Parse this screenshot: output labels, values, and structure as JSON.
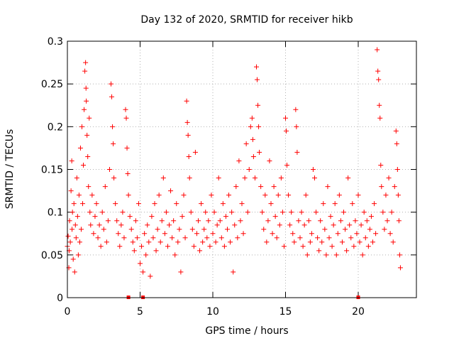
{
  "chart_data": {
    "type": "scatter",
    "title": "Day 132 of 2020, SRMTID for receiver hikb",
    "xlabel": "GPS time / hours",
    "ylabel": "SRMTID / TECUs",
    "xlim": [
      0,
      24
    ],
    "ylim": [
      0,
      0.3
    ],
    "xticks": [
      0,
      5,
      10,
      15,
      20
    ],
    "xtick_labels": [
      "0",
      "5",
      "10",
      "15",
      "20"
    ],
    "yticks": [
      0,
      0.05,
      0.1,
      0.15,
      0.2,
      0.25,
      0.3
    ],
    "ytick_labels": [
      "0",
      "0.05",
      "0.1",
      "0.15",
      "0.2",
      "0.25",
      "0.3"
    ],
    "grid": true,
    "marker": "+",
    "color": "#ff0000",
    "series": [
      {
        "name": "SRMTID",
        "points": [
          [
            0.0,
            0.06
          ],
          [
            0.05,
            0.072
          ],
          [
            0.1,
            0.035
          ],
          [
            0.12,
            0.055
          ],
          [
            0.15,
            0.09
          ],
          [
            0.2,
            0.065
          ],
          [
            0.25,
            0.125
          ],
          [
            0.3,
            0.16
          ],
          [
            0.32,
            0.08
          ],
          [
            0.35,
            0.1
          ],
          [
            0.4,
            0.045
          ],
          [
            0.45,
            0.11
          ],
          [
            0.5,
            0.03
          ],
          [
            0.55,
            0.085
          ],
          [
            0.6,
            0.07
          ],
          [
            0.65,
            0.14
          ],
          [
            0.7,
            0.095
          ],
          [
            0.75,
            0.05
          ],
          [
            0.8,
            0.12
          ],
          [
            0.85,
            0.065
          ],
          [
            0.9,
            0.175
          ],
          [
            0.95,
            0.08
          ],
          [
            1.0,
            0.2
          ],
          [
            1.05,
            0.11
          ],
          [
            1.1,
            0.155
          ],
          [
            1.15,
            0.22
          ],
          [
            1.2,
            0.265
          ],
          [
            1.25,
            0.275
          ],
          [
            1.28,
            0.245
          ],
          [
            1.3,
            0.23
          ],
          [
            1.35,
            0.19
          ],
          [
            1.4,
            0.165
          ],
          [
            1.45,
            0.13
          ],
          [
            1.5,
            0.21
          ],
          [
            1.55,
            0.1
          ],
          [
            1.6,
            0.085
          ],
          [
            1.7,
            0.12
          ],
          [
            1.8,
            0.075
          ],
          [
            1.9,
            0.095
          ],
          [
            2.0,
            0.11
          ],
          [
            2.1,
            0.07
          ],
          [
            2.2,
            0.085
          ],
          [
            2.3,
            0.06
          ],
          [
            2.4,
            0.1
          ],
          [
            2.5,
            0.08
          ],
          [
            2.6,
            0.13
          ],
          [
            2.7,
            0.065
          ],
          [
            2.8,
            0.09
          ],
          [
            2.9,
            0.15
          ],
          [
            3.0,
            0.25
          ],
          [
            3.05,
            0.235
          ],
          [
            3.1,
            0.2
          ],
          [
            3.15,
            0.18
          ],
          [
            3.2,
            0.14
          ],
          [
            3.3,
            0.11
          ],
          [
            3.4,
            0.09
          ],
          [
            3.5,
            0.075
          ],
          [
            3.6,
            0.06
          ],
          [
            3.7,
            0.085
          ],
          [
            3.8,
            0.1
          ],
          [
            3.9,
            0.07
          ],
          [
            4.0,
            0.22
          ],
          [
            4.05,
            0.21
          ],
          [
            4.1,
            0.175
          ],
          [
            4.15,
            0.145
          ],
          [
            4.2,
            0.12
          ],
          [
            4.3,
            0.095
          ],
          [
            4.4,
            0.08
          ],
          [
            4.5,
            0.065
          ],
          [
            4.6,
            0.055
          ],
          [
            4.7,
            0.09
          ],
          [
            4.8,
            0.07
          ],
          [
            4.9,
            0.11
          ],
          [
            5.0,
            0.04
          ],
          [
            5.1,
            0.06
          ],
          [
            5.2,
            0.03
          ],
          [
            5.3,
            0.075
          ],
          [
            5.4,
            0.05
          ],
          [
            5.5,
            0.085
          ],
          [
            5.6,
            0.065
          ],
          [
            5.7,
            0.025
          ],
          [
            5.8,
            0.095
          ],
          [
            5.9,
            0.07
          ],
          [
            6.0,
            0.11
          ],
          [
            6.1,
            0.055
          ],
          [
            6.2,
            0.08
          ],
          [
            6.3,
            0.12
          ],
          [
            6.4,
            0.065
          ],
          [
            6.5,
            0.09
          ],
          [
            6.6,
            0.14
          ],
          [
            6.7,
            0.075
          ],
          [
            6.8,
            0.1
          ],
          [
            6.9,
            0.06
          ],
          [
            7.0,
            0.085
          ],
          [
            7.1,
            0.125
          ],
          [
            7.2,
            0.07
          ],
          [
            7.3,
            0.09
          ],
          [
            7.4,
            0.05
          ],
          [
            7.5,
            0.11
          ],
          [
            7.6,
            0.065
          ],
          [
            7.7,
            0.08
          ],
          [
            7.8,
            0.03
          ],
          [
            7.9,
            0.095
          ],
          [
            8.0,
            0.12
          ],
          [
            8.1,
            0.07
          ],
          [
            8.2,
            0.23
          ],
          [
            8.25,
            0.205
          ],
          [
            8.3,
            0.19
          ],
          [
            8.35,
            0.165
          ],
          [
            8.4,
            0.14
          ],
          [
            8.5,
            0.1
          ],
          [
            8.6,
            0.08
          ],
          [
            8.7,
            0.06
          ],
          [
            8.8,
            0.17
          ],
          [
            8.9,
            0.075
          ],
          [
            9.0,
            0.09
          ],
          [
            9.1,
            0.055
          ],
          [
            9.2,
            0.11
          ],
          [
            9.3,
            0.065
          ],
          [
            9.4,
            0.08
          ],
          [
            9.5,
            0.1
          ],
          [
            9.6,
            0.07
          ],
          [
            9.7,
            0.09
          ],
          [
            9.8,
            0.06
          ],
          [
            9.9,
            0.12
          ],
          [
            10.0,
            0.075
          ],
          [
            10.1,
            0.1
          ],
          [
            10.2,
            0.065
          ],
          [
            10.3,
            0.085
          ],
          [
            10.4,
            0.14
          ],
          [
            10.5,
            0.09
          ],
          [
            10.6,
            0.07
          ],
          [
            10.7,
            0.11
          ],
          [
            10.8,
            0.06
          ],
          [
            10.9,
            0.095
          ],
          [
            11.0,
            0.08
          ],
          [
            11.1,
            0.12
          ],
          [
            11.2,
            0.065
          ],
          [
            11.3,
            0.1
          ],
          [
            11.4,
            0.03
          ],
          [
            11.5,
            0.085
          ],
          [
            11.6,
            0.13
          ],
          [
            11.7,
            0.07
          ],
          [
            11.8,
            0.16
          ],
          [
            11.9,
            0.09
          ],
          [
            12.0,
            0.11
          ],
          [
            12.1,
            0.075
          ],
          [
            12.2,
            0.14
          ],
          [
            12.3,
            0.18
          ],
          [
            12.4,
            0.1
          ],
          [
            12.5,
            0.15
          ],
          [
            12.6,
            0.2
          ],
          [
            12.7,
            0.21
          ],
          [
            12.75,
            0.185
          ],
          [
            12.8,
            0.165
          ],
          [
            12.9,
            0.14
          ],
          [
            13.0,
            0.27
          ],
          [
            13.05,
            0.255
          ],
          [
            13.1,
            0.225
          ],
          [
            13.15,
            0.2
          ],
          [
            13.2,
            0.17
          ],
          [
            13.3,
            0.13
          ],
          [
            13.4,
            0.1
          ],
          [
            13.5,
            0.08
          ],
          [
            13.6,
            0.12
          ],
          [
            13.7,
            0.065
          ],
          [
            13.8,
            0.09
          ],
          [
            13.9,
            0.16
          ],
          [
            14.0,
            0.11
          ],
          [
            14.1,
            0.075
          ],
          [
            14.2,
            0.13
          ],
          [
            14.3,
            0.095
          ],
          [
            14.4,
            0.07
          ],
          [
            14.5,
            0.12
          ],
          [
            14.6,
            0.085
          ],
          [
            14.7,
            0.14
          ],
          [
            14.8,
            0.1
          ],
          [
            14.9,
            0.06
          ],
          [
            15.0,
            0.21
          ],
          [
            15.05,
            0.195
          ],
          [
            15.1,
            0.155
          ],
          [
            15.2,
            0.12
          ],
          [
            15.3,
            0.085
          ],
          [
            15.4,
            0.1
          ],
          [
            15.5,
            0.075
          ],
          [
            15.6,
            0.065
          ],
          [
            15.7,
            0.22
          ],
          [
            15.75,
            0.2
          ],
          [
            15.8,
            0.17
          ],
          [
            15.9,
            0.09
          ],
          [
            16.0,
            0.07
          ],
          [
            16.1,
            0.1
          ],
          [
            16.2,
            0.06
          ],
          [
            16.3,
            0.085
          ],
          [
            16.4,
            0.12
          ],
          [
            16.5,
            0.05
          ],
          [
            16.6,
            0.09
          ],
          [
            16.7,
            0.065
          ],
          [
            16.8,
            0.075
          ],
          [
            16.9,
            0.15
          ],
          [
            17.0,
            0.14
          ],
          [
            17.1,
            0.1
          ],
          [
            17.2,
            0.07
          ],
          [
            17.3,
            0.055
          ],
          [
            17.4,
            0.09
          ],
          [
            17.5,
            0.065
          ],
          [
            17.6,
            0.11
          ],
          [
            17.7,
            0.08
          ],
          [
            17.8,
            0.05
          ],
          [
            17.9,
            0.13
          ],
          [
            18.0,
            0.07
          ],
          [
            18.1,
            0.095
          ],
          [
            18.2,
            0.06
          ],
          [
            18.3,
            0.085
          ],
          [
            18.4,
            0.11
          ],
          [
            18.5,
            0.05
          ],
          [
            18.6,
            0.075
          ],
          [
            18.7,
            0.12
          ],
          [
            18.8,
            0.09
          ],
          [
            18.9,
            0.065
          ],
          [
            19.0,
            0.1
          ],
          [
            19.1,
            0.08
          ],
          [
            19.2,
            0.055
          ],
          [
            19.3,
            0.14
          ],
          [
            19.4,
            0.085
          ],
          [
            19.5,
            0.07
          ],
          [
            19.6,
            0.11
          ],
          [
            19.7,
            0.06
          ],
          [
            19.8,
            0.09
          ],
          [
            19.9,
            0.075
          ],
          [
            20.0,
            0.12
          ],
          [
            20.1,
            0.065
          ],
          [
            20.2,
            0.085
          ],
          [
            20.3,
            0.05
          ],
          [
            20.4,
            0.1
          ],
          [
            20.5,
            0.07
          ],
          [
            20.6,
            0.09
          ],
          [
            20.7,
            0.06
          ],
          [
            20.8,
            0.08
          ],
          [
            20.9,
            0.095
          ],
          [
            21.0,
            0.065
          ],
          [
            21.1,
            0.11
          ],
          [
            21.2,
            0.075
          ],
          [
            21.3,
            0.29
          ],
          [
            21.35,
            0.265
          ],
          [
            21.4,
            0.255
          ],
          [
            21.45,
            0.225
          ],
          [
            21.5,
            0.21
          ],
          [
            21.55,
            0.155
          ],
          [
            21.6,
            0.13
          ],
          [
            21.7,
            0.1
          ],
          [
            21.8,
            0.08
          ],
          [
            21.9,
            0.12
          ],
          [
            22.0,
            0.09
          ],
          [
            22.1,
            0.14
          ],
          [
            22.2,
            0.075
          ],
          [
            22.3,
            0.1
          ],
          [
            22.4,
            0.065
          ],
          [
            22.5,
            0.13
          ],
          [
            22.6,
            0.195
          ],
          [
            22.65,
            0.18
          ],
          [
            22.7,
            0.15
          ],
          [
            22.75,
            0.12
          ],
          [
            22.8,
            0.09
          ],
          [
            22.85,
            0.05
          ],
          [
            22.9,
            0.035
          ]
        ]
      }
    ],
    "baseline_markers": [
      4.2,
      5.2,
      20.0
    ]
  }
}
